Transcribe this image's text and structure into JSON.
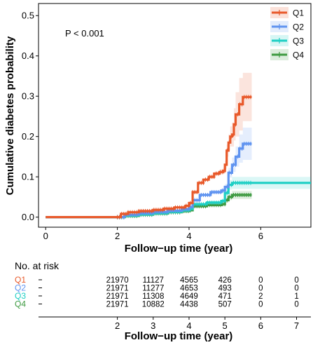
{
  "chart_data": {
    "type": "line",
    "title": "",
    "xlabel": "Follow−up time (year)",
    "ylabel": "Cumulative diabetes probability",
    "xlim": [
      -0.2,
      7.4
    ],
    "ylim": [
      -0.025,
      0.53
    ],
    "x_ticks": [
      0,
      2,
      4,
      6
    ],
    "x_tick_labels": [
      "0",
      "2",
      "4",
      "6"
    ],
    "y_ticks": [
      0.0,
      0.1,
      0.2,
      0.3,
      0.4,
      0.5
    ],
    "y_tick_labels": [
      "0.0",
      "0.1",
      "0.2",
      "0.3",
      "0.4",
      "0.5"
    ],
    "annotation": "P < 0.001",
    "legend_position": "top-right",
    "series": [
      {
        "name": "Q1",
        "color": "#E8592A",
        "x": [
          0,
          2.0,
          2.1,
          2.3,
          2.6,
          3.0,
          3.3,
          3.6,
          3.9,
          4.0,
          4.1,
          4.25,
          4.4,
          4.55,
          4.7,
          4.85,
          4.95,
          5.0,
          5.05,
          5.1,
          5.15,
          5.2,
          5.25,
          5.3,
          5.4,
          5.5,
          5.6,
          5.75
        ],
        "y": [
          0,
          0,
          0.008,
          0.012,
          0.015,
          0.018,
          0.021,
          0.024,
          0.028,
          0.035,
          0.062,
          0.085,
          0.093,
          0.1,
          0.108,
          0.112,
          0.115,
          0.13,
          0.165,
          0.185,
          0.2,
          0.205,
          0.23,
          0.255,
          0.28,
          0.298,
          0.298,
          0.298
        ],
        "ci_upper": [
          0,
          0,
          0.009,
          0.013,
          0.016,
          0.019,
          0.022,
          0.025,
          0.03,
          0.037,
          0.065,
          0.088,
          0.097,
          0.104,
          0.113,
          0.118,
          0.122,
          0.14,
          0.18,
          0.205,
          0.225,
          0.235,
          0.27,
          0.31,
          0.345,
          0.358,
          0.358,
          0.358
        ],
        "ci_lower": [
          0,
          0,
          0.007,
          0.011,
          0.014,
          0.017,
          0.02,
          0.023,
          0.026,
          0.033,
          0.059,
          0.082,
          0.089,
          0.096,
          0.103,
          0.106,
          0.108,
          0.12,
          0.15,
          0.165,
          0.175,
          0.175,
          0.19,
          0.2,
          0.215,
          0.238,
          0.238,
          0.238
        ]
      },
      {
        "name": "Q2",
        "color": "#5F93F0",
        "x": [
          0,
          2.0,
          2.2,
          2.6,
          3.0,
          3.4,
          3.8,
          4.0,
          4.1,
          4.3,
          4.6,
          4.9,
          5.0,
          5.1,
          5.2,
          5.3,
          5.4,
          5.5,
          5.75
        ],
        "y": [
          0,
          0,
          0.006,
          0.01,
          0.013,
          0.016,
          0.02,
          0.025,
          0.042,
          0.055,
          0.062,
          0.066,
          0.075,
          0.11,
          0.13,
          0.15,
          0.17,
          0.182,
          0.182
        ],
        "ci_upper": [
          0,
          0,
          0.007,
          0.011,
          0.014,
          0.017,
          0.021,
          0.027,
          0.044,
          0.058,
          0.066,
          0.071,
          0.082,
          0.122,
          0.148,
          0.175,
          0.205,
          0.222,
          0.222
        ],
        "ci_lower": [
          0,
          0,
          0.005,
          0.009,
          0.012,
          0.015,
          0.019,
          0.023,
          0.04,
          0.052,
          0.058,
          0.061,
          0.068,
          0.098,
          0.112,
          0.125,
          0.135,
          0.142,
          0.142
        ]
      },
      {
        "name": "Q3",
        "color": "#1DCFC4",
        "x": [
          0,
          2.0,
          2.2,
          2.6,
          3.0,
          3.4,
          3.8,
          4.0,
          4.1,
          4.5,
          4.9,
          5.0,
          5.1,
          5.2,
          7.4
        ],
        "y": [
          0,
          0,
          0.004,
          0.007,
          0.01,
          0.013,
          0.017,
          0.02,
          0.032,
          0.036,
          0.04,
          0.06,
          0.08,
          0.085,
          0.085
        ],
        "ci_upper": [
          0,
          0,
          0.005,
          0.008,
          0.011,
          0.014,
          0.018,
          0.022,
          0.034,
          0.039,
          0.044,
          0.068,
          0.092,
          0.1,
          0.1
        ],
        "ci_lower": [
          0,
          0,
          0.003,
          0.006,
          0.009,
          0.012,
          0.016,
          0.018,
          0.03,
          0.033,
          0.036,
          0.052,
          0.068,
          0.07,
          0.07
        ]
      },
      {
        "name": "Q4",
        "color": "#3E9A41",
        "x": [
          0,
          2.0,
          2.2,
          2.6,
          3.0,
          3.4,
          3.8,
          4.0,
          4.1,
          4.5,
          4.9,
          5.0,
          5.1,
          5.2,
          5.75
        ],
        "y": [
          0,
          0,
          0.003,
          0.006,
          0.009,
          0.012,
          0.015,
          0.017,
          0.027,
          0.03,
          0.032,
          0.042,
          0.05,
          0.055,
          0.055
        ],
        "ci_upper": [
          0,
          0,
          0.004,
          0.007,
          0.01,
          0.013,
          0.016,
          0.019,
          0.029,
          0.033,
          0.036,
          0.048,
          0.058,
          0.065,
          0.065
        ],
        "ci_lower": [
          0,
          0,
          0.002,
          0.005,
          0.008,
          0.011,
          0.014,
          0.015,
          0.025,
          0.027,
          0.028,
          0.036,
          0.042,
          0.045,
          0.045
        ]
      }
    ]
  },
  "risk_table": {
    "title": "No. at risk",
    "xlabel": "Follow−up time (year)",
    "times": [
      "2",
      "3",
      "4",
      "5",
      "6",
      "7"
    ],
    "rows": [
      {
        "label": "Q1",
        "color": "#E8592A",
        "values": [
          "21970",
          "11127",
          "4565",
          "426",
          "0",
          "0"
        ]
      },
      {
        "label": "Q2",
        "color": "#5F93F0",
        "values": [
          "21971",
          "11277",
          "4653",
          "493",
          "0",
          "0"
        ]
      },
      {
        "label": "Q3",
        "color": "#1DCFC4",
        "values": [
          "21971",
          "11308",
          "4649",
          "471",
          "2",
          "1"
        ]
      },
      {
        "label": "Q4",
        "color": "#3E9A41",
        "values": [
          "21971",
          "10882",
          "4438",
          "507",
          "0",
          "0"
        ]
      }
    ]
  }
}
